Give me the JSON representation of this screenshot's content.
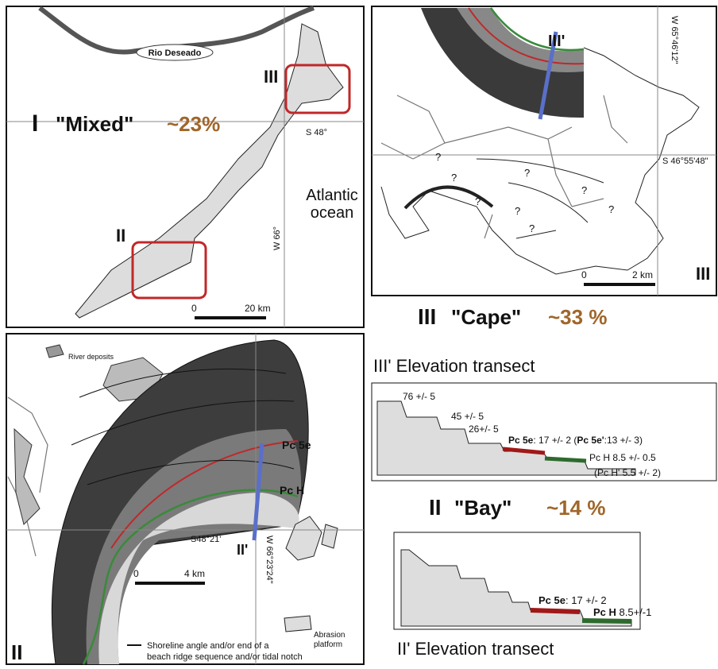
{
  "panel_I": {
    "river_label": "Rio Deseado",
    "box_III_label": "III",
    "numeral": "I",
    "name": "\"Mixed\"",
    "percent": "~23%",
    "latitude": "S 48°",
    "longitude": "W 66°",
    "ocean": [
      "Atlantic",
      "ocean"
    ],
    "box_II_label": "II",
    "scale": [
      "0",
      "20 km"
    ]
  },
  "panel_III_map": {
    "transect_label": "III'",
    "longitude": "W 65°46'12\"",
    "latitude": "S 46°55'48\"",
    "question_marks": [
      "?",
      "?",
      "?",
      "?",
      "?",
      "?",
      "?",
      "?"
    ],
    "scale": [
      "0",
      "2 km"
    ],
    "corner_label": "III"
  },
  "cape_heading": {
    "numeral": "III",
    "name": "\"Cape\"",
    "percent": "~33 %"
  },
  "cape_transect": {
    "title": "III' Elevation transect",
    "labels": [
      "76 +/- 5",
      "45 +/- 5",
      "26+/- 5",
      "Pc 5e",
      ": 17 +/- 2 (",
      "Pc 5e'",
      ":13 +/- 3)",
      "Pc H 8.5 +/- 0.5",
      "(Pc H' 5.5 +/- 2)"
    ]
  },
  "bay_heading": {
    "numeral": "II",
    "name": "\"Bay\"",
    "percent": "~14 %"
  },
  "bay_transect": {
    "title": "II' Elevation transect",
    "labels": [
      "Pc 5e",
      ": 17 +/- 2",
      "Pc H",
      " 8.5+/-1"
    ]
  },
  "panel_II_map": {
    "legend_river": "River deposits",
    "pc5e": "Pc 5e",
    "pch": "Pc H",
    "latitude": "S48°21'",
    "longitude": "W 66°23'24\"",
    "transect_label": "II'",
    "scale": [
      "0",
      "4 km"
    ],
    "legend_abrasion": [
      "Abrasion",
      "platform"
    ],
    "corner_label": "II",
    "legend_shoreline": [
      "Shoreline angle and/or end of a",
      "beach ridge sequence and/or tidal notch"
    ]
  }
}
